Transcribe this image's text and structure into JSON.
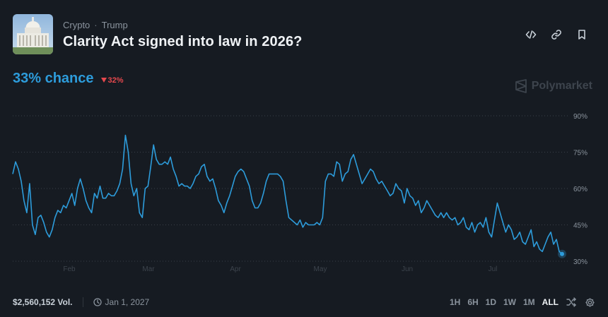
{
  "market": {
    "category": "Crypto",
    "subcategory": "Trump",
    "title": "Clarity Act signed into law in 2026?"
  },
  "header_actions": [
    {
      "icon": "embed-icon"
    },
    {
      "icon": "link-icon"
    },
    {
      "icon": "bookmark-icon"
    }
  ],
  "odds": {
    "chance_label": "33% chance",
    "change_label": "32%",
    "change_direction": "down",
    "change_color": "#e5484d",
    "accent_color": "#2d9cdb"
  },
  "brand": {
    "name": "Polymarket"
  },
  "chart_data": {
    "type": "line",
    "x_labels": [
      "Feb",
      "Mar",
      "Apr",
      "May",
      "Jun",
      "Jul"
    ],
    "y_ticks": [
      "90%",
      "75%",
      "60%",
      "45%",
      "30%"
    ],
    "ylim": [
      30,
      90
    ],
    "grid": "horizontal-dotted",
    "series": [
      {
        "color": "#2d9cdb",
        "values": [
          66,
          71,
          68,
          63,
          55,
          50,
          62,
          45,
          41,
          48,
          49,
          46,
          42,
          40,
          43,
          48,
          51,
          50,
          53,
          52,
          55,
          58,
          53,
          60,
          64,
          60,
          55,
          52,
          50,
          58,
          56,
          61,
          56,
          56,
          58,
          57,
          57,
          59,
          62,
          68,
          82,
          75,
          62,
          57,
          60,
          50,
          48,
          60,
          61,
          69,
          78,
          72,
          70,
          70,
          71,
          70,
          73,
          68,
          65,
          61,
          62,
          61,
          61,
          60,
          62,
          65,
          66,
          69,
          70,
          65,
          63,
          64,
          60,
          55,
          53,
          50,
          54,
          57,
          61,
          65,
          67,
          68,
          67,
          64,
          61,
          55,
          52,
          52,
          54,
          58,
          63,
          66,
          66,
          66,
          66,
          65,
          63,
          55,
          48,
          47,
          46,
          45,
          47,
          44,
          46,
          45,
          45,
          45,
          46,
          45,
          48,
          63,
          66,
          66,
          65,
          71,
          70,
          63,
          66,
          67,
          72,
          74,
          70,
          66,
          62,
          64,
          66,
          68,
          67,
          64,
          62,
          63,
          61,
          59,
          57,
          58,
          62,
          60,
          59,
          54,
          60,
          57,
          56,
          53,
          55,
          50,
          52,
          55,
          53,
          51,
          49,
          48,
          50,
          48,
          50,
          48,
          47,
          48,
          45,
          46,
          48,
          44,
          43,
          46,
          42,
          45,
          46,
          44,
          48,
          42,
          40,
          47,
          54,
          50,
          46,
          42,
          45,
          43,
          39,
          40,
          42,
          38,
          37,
          40,
          43,
          36,
          38,
          35,
          34,
          37,
          40,
          42,
          37,
          39,
          34,
          33
        ],
        "final": 33
      }
    ]
  },
  "footer": {
    "volume": "$2,560,152 Vol.",
    "end_date": "Jan 1, 2027",
    "ranges": [
      "1H",
      "6H",
      "1D",
      "1W",
      "1M",
      "ALL"
    ],
    "active_range": "ALL"
  }
}
